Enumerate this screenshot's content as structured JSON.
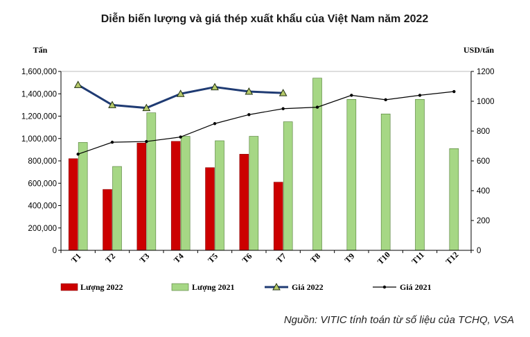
{
  "chart_data": {
    "type": "bar",
    "title": "Diễn biến lượng và giá thép xuất khẩu của Việt Nam năm 2022",
    "ylabel_left": "Tấn",
    "ylabel_right": "USD/tấn",
    "ylim_left": [
      0,
      1600000
    ],
    "ylim_right": [
      0,
      1200
    ],
    "yticks_left": [
      "0",
      "200,000",
      "400,000",
      "600,000",
      "800,000",
      "1,000,000",
      "1,200,000",
      "1,400,000",
      "1,600,000"
    ],
    "yticks_right": [
      "0",
      "200",
      "400",
      "600",
      "800",
      "1000",
      "1200"
    ],
    "categories": [
      "T1",
      "T2",
      "T3",
      "T4",
      "T5",
      "T6",
      "T7",
      "T8",
      "T9",
      "T10",
      "T11",
      "T12"
    ],
    "grid": false,
    "legend_position": "bottom",
    "series": [
      {
        "name": "Lượng 2022",
        "kind": "bar",
        "axis": "left",
        "color": "#cc0000",
        "values": [
          820000,
          545000,
          960000,
          975000,
          740000,
          860000,
          610000,
          null,
          null,
          null,
          null,
          null
        ]
      },
      {
        "name": "Lượng 2021",
        "kind": "bar",
        "axis": "left",
        "color": "#a6d785",
        "values": [
          965000,
          750000,
          1230000,
          1020000,
          980000,
          1020000,
          1150000,
          1540000,
          1350000,
          1220000,
          1350000,
          910000
        ]
      },
      {
        "name": "Giá 2022",
        "kind": "line",
        "axis": "right",
        "color": "#1f3b73",
        "values": [
          1110,
          975,
          955,
          1050,
          1095,
          1065,
          1055,
          null,
          null,
          null,
          null,
          null
        ]
      },
      {
        "name": "Giá 2021",
        "kind": "line",
        "axis": "right",
        "color": "#000000",
        "values": [
          645,
          725,
          730,
          760,
          850,
          910,
          950,
          960,
          1040,
          1010,
          1040,
          1065
        ]
      }
    ]
  },
  "source": "Nguồn: VITIC tính toán từ số liệu của TCHQ, VSA"
}
